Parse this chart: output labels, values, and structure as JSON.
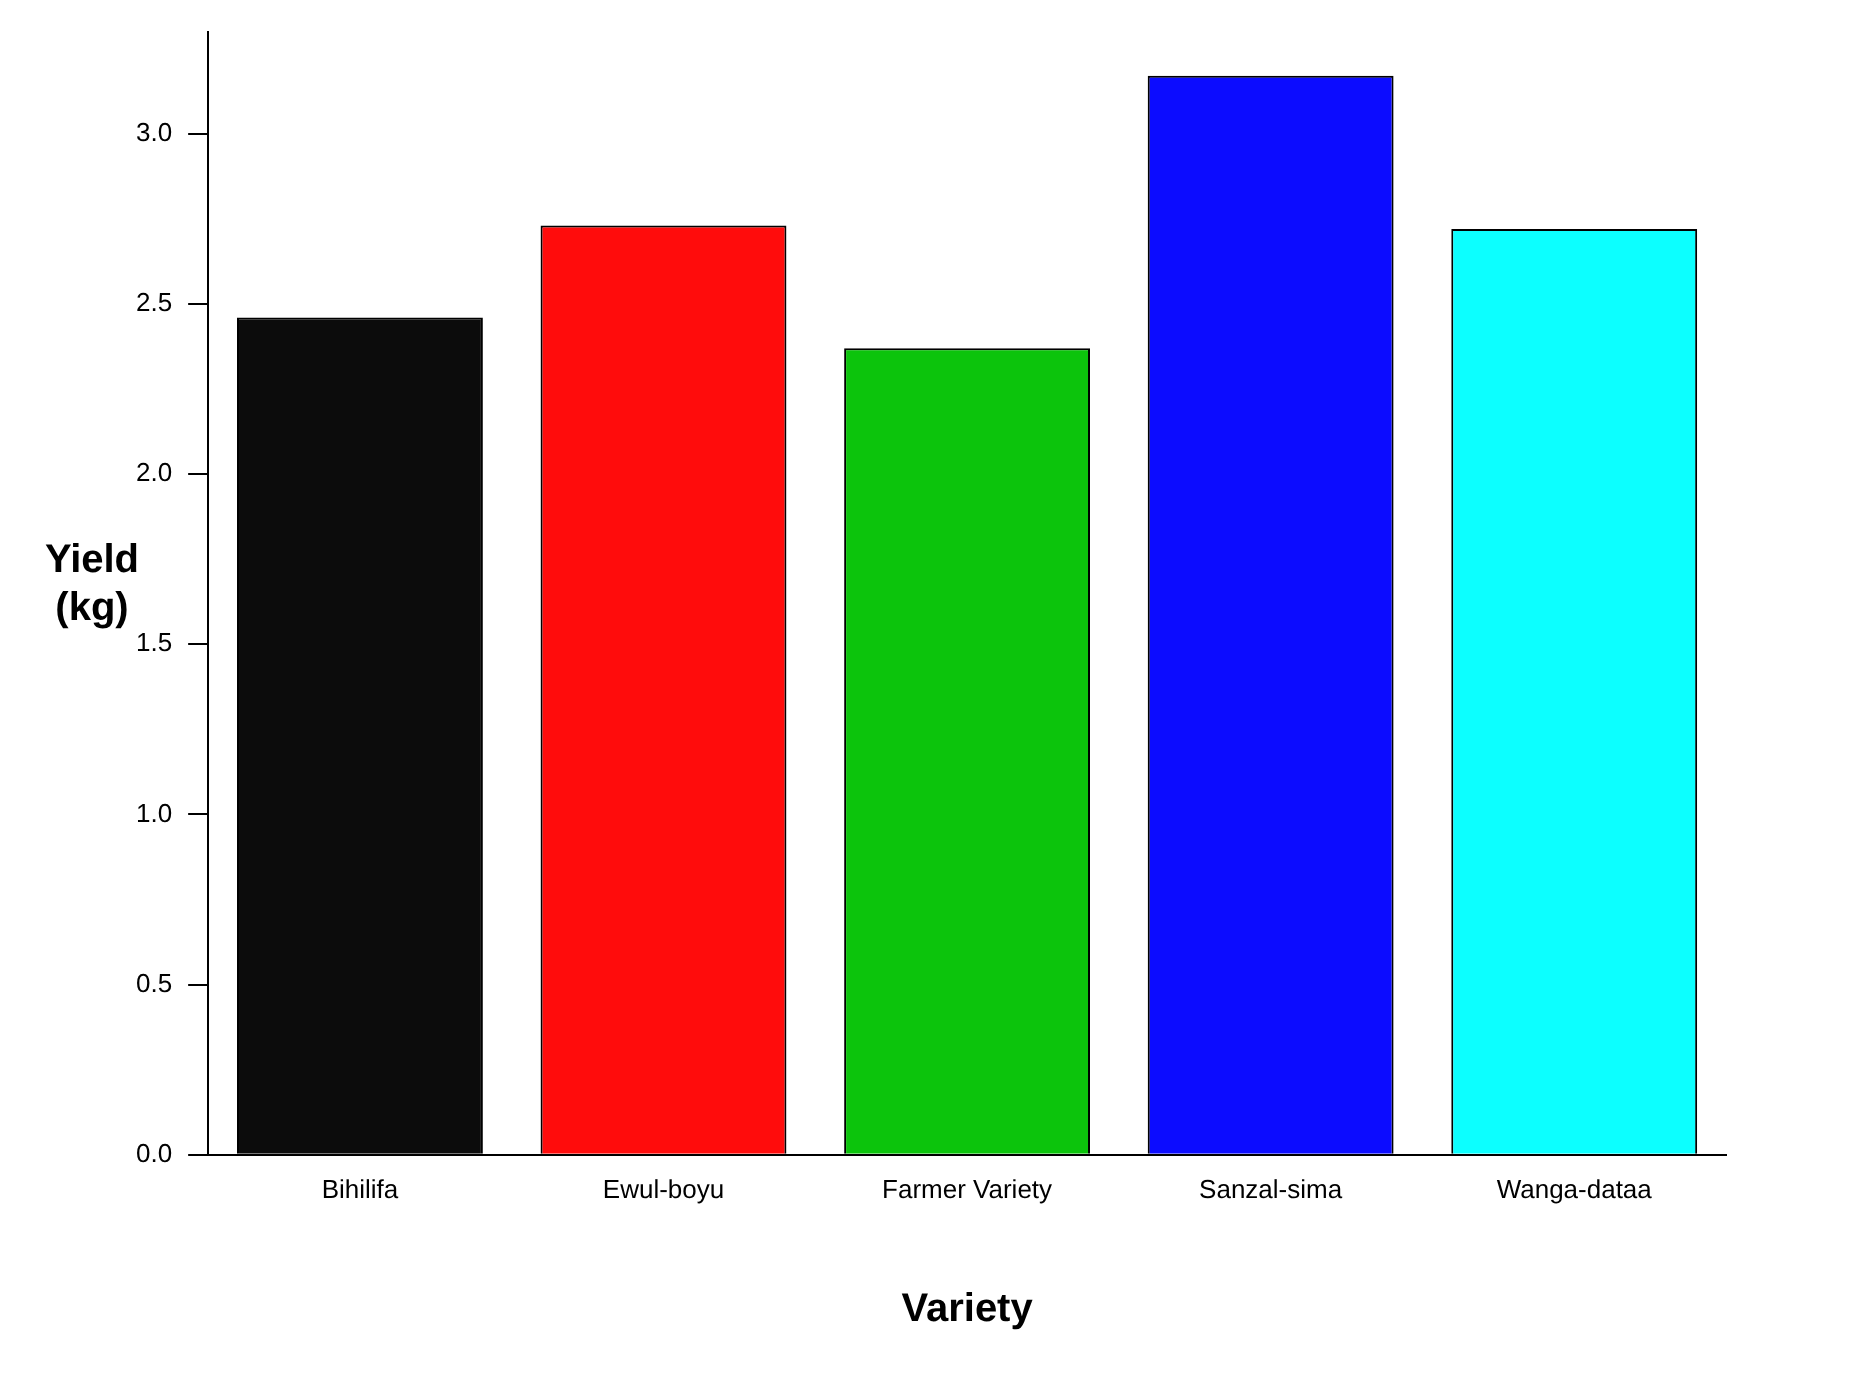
{
  "chart_data": {
    "type": "bar",
    "xlabel": "Variety",
    "ylabel": "Yield\n(kg)",
    "categories": [
      "Bihilifa",
      "Ewul-boyu",
      "Farmer Variety",
      "Sanzal-sima",
      "Wanga-dataa"
    ],
    "values": [
      2.46,
      2.73,
      2.37,
      3.17,
      2.72
    ],
    "colors": [
      "#0c0c0c",
      "#ff0c0c",
      "#0cc40c",
      "#0c0cff",
      "#0cffff"
    ],
    "ylim": [
      0,
      3.3
    ],
    "yticks": [
      {
        "value": 0,
        "label": "0.0"
      },
      {
        "value": 0.5,
        "label": "0.5"
      },
      {
        "value": 1,
        "label": "1.0"
      },
      {
        "value": 1.5,
        "label": "1.5"
      },
      {
        "value": 2,
        "label": "2.0"
      },
      {
        "value": 2.5,
        "label": "2.5"
      },
      {
        "value": 3,
        "label": "3.0"
      }
    ],
    "grid": false,
    "legend": false
  }
}
